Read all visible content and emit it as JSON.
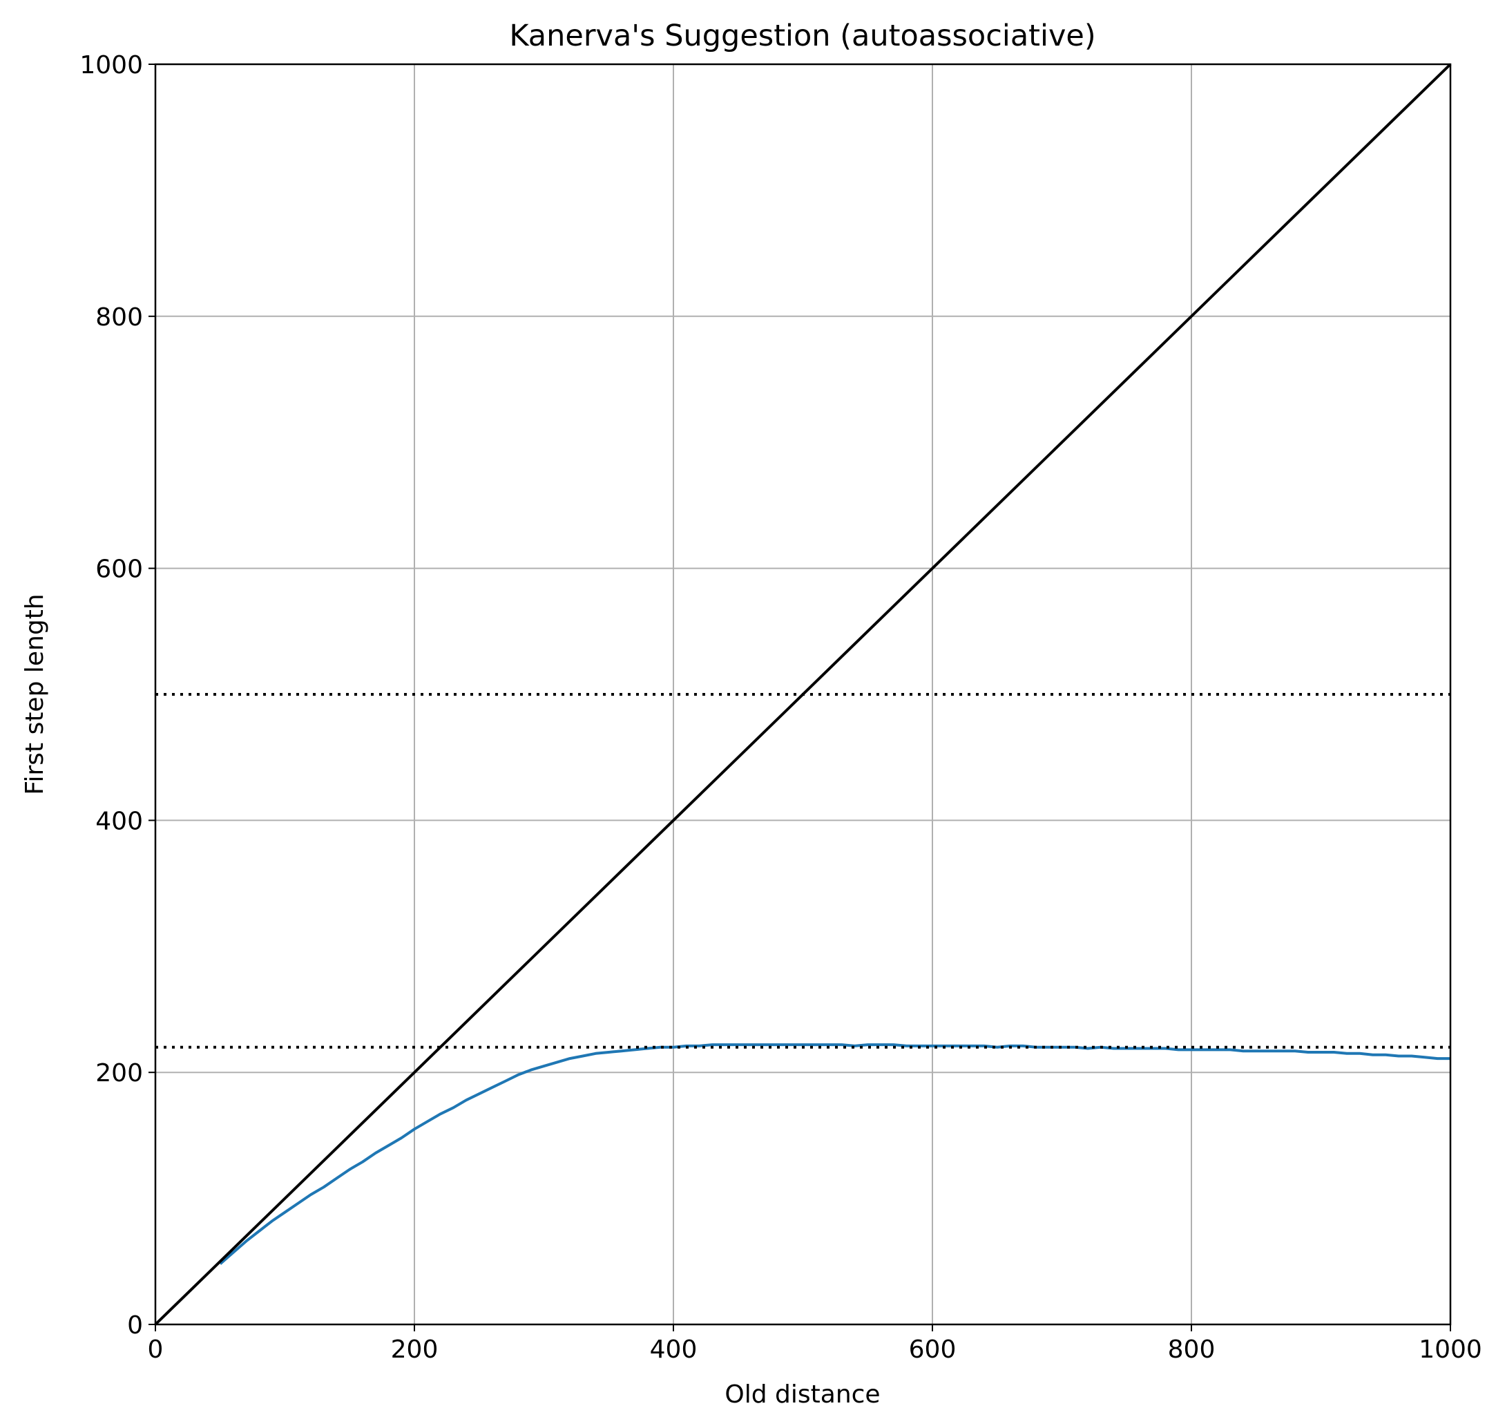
{
  "chart_data": {
    "type": "line",
    "title": "Kanerva's Suggestion (autoassociative)",
    "xlabel": "Old distance",
    "ylabel": "First step length",
    "xlim": [
      0,
      1000
    ],
    "ylim": [
      0,
      1000
    ],
    "xticks": [
      "0",
      "200",
      "400",
      "600",
      "800",
      "1000"
    ],
    "yticks": [
      "0",
      "200",
      "400",
      "600",
      "800",
      "1000"
    ],
    "grid": true,
    "legend": "none",
    "series": [
      {
        "color": "#1f77b4",
        "style": "solid",
        "x": [
          50,
          60,
          70,
          80,
          90,
          100,
          110,
          120,
          130,
          140,
          150,
          160,
          170,
          180,
          190,
          200,
          210,
          220,
          230,
          240,
          250,
          260,
          270,
          280,
          290,
          300,
          310,
          320,
          330,
          340,
          350,
          360,
          370,
          380,
          390,
          400,
          410,
          420,
          430,
          440,
          450,
          460,
          470,
          480,
          490,
          500,
          510,
          520,
          530,
          540,
          550,
          560,
          570,
          580,
          590,
          600,
          610,
          620,
          630,
          640,
          650,
          660,
          670,
          680,
          690,
          700,
          710,
          720,
          730,
          740,
          750,
          760,
          770,
          780,
          790,
          800,
          810,
          820,
          830,
          840,
          850,
          860,
          870,
          880,
          890,
          900,
          910,
          920,
          930,
          940,
          950,
          960,
          970,
          980,
          990,
          1000
        ],
        "y": [
          48,
          57,
          66,
          74,
          82,
          89,
          96,
          103,
          109,
          116,
          123,
          129,
          136,
          142,
          148,
          155,
          161,
          167,
          172,
          178,
          183,
          188,
          193,
          198,
          202,
          205,
          208,
          211,
          213,
          215,
          216,
          217,
          218,
          219,
          220,
          220,
          221,
          221,
          222,
          222,
          222,
          222,
          222,
          222,
          222,
          222,
          222,
          222,
          222,
          221,
          222,
          222,
          222,
          221,
          221,
          221,
          221,
          221,
          221,
          221,
          220,
          221,
          221,
          220,
          220,
          220,
          220,
          219,
          220,
          219,
          219,
          219,
          219,
          219,
          218,
          218,
          218,
          218,
          218,
          217,
          217,
          217,
          217,
          217,
          216,
          216,
          216,
          215,
          215,
          214,
          214,
          213,
          213,
          212,
          211,
          211
        ]
      },
      {
        "color": "#000000",
        "style": "solid",
        "x": [
          0,
          1000
        ],
        "y": [
          0,
          1000
        ]
      },
      {
        "color": "#000000",
        "style": "dotted",
        "x": [
          0,
          1000
        ],
        "y": [
          500,
          500
        ]
      },
      {
        "color": "#000000",
        "style": "dotted",
        "x": [
          0,
          1000
        ],
        "y": [
          220,
          220
        ]
      }
    ]
  }
}
